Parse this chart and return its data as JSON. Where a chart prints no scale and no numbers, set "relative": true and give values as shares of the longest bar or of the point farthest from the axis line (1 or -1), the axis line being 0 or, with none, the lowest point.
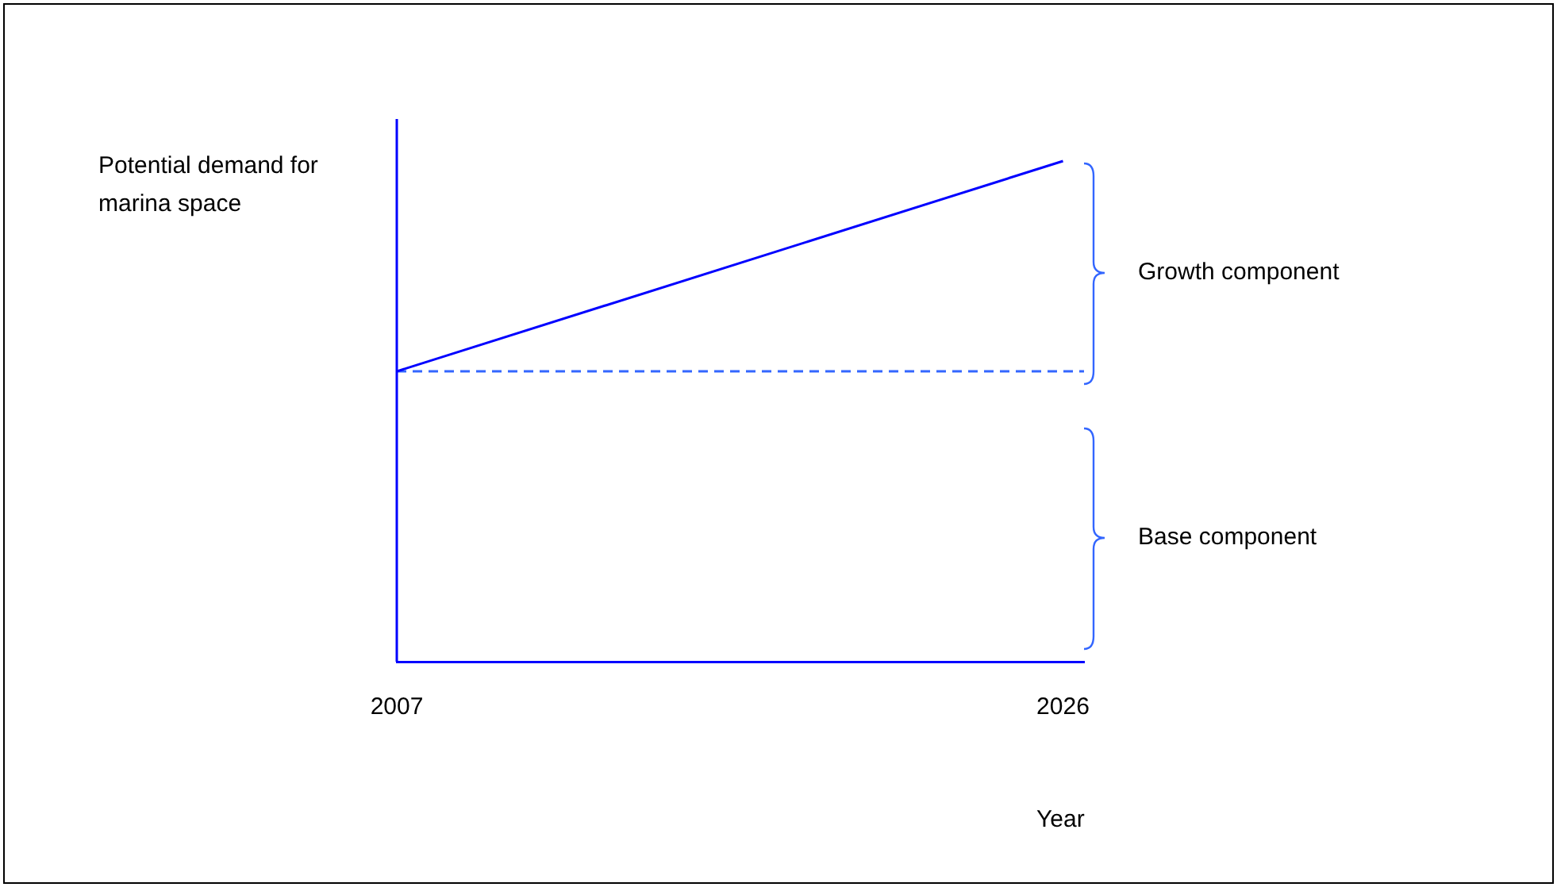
{
  "chart_data": {
    "type": "line",
    "relative": true,
    "ylabel": "Potential demand for marina space",
    "xlabel": "Year",
    "xlim": [
      2007,
      2026.6
    ],
    "xticks": [
      2007,
      2026
    ],
    "series": [
      {
        "color": "#0000ff",
        "x": [
          2007,
          2026
        ],
        "values": [
          0.58,
          1
        ],
        "line_style": "solid"
      },
      {
        "color": "#3366ff",
        "x": [
          2007,
          2026.6
        ],
        "values": [
          0.58,
          0.58
        ],
        "line_style": "dashed"
      }
    ],
    "annotations": [
      "Growth component",
      "Base component"
    ],
    "grid": false,
    "legend": false,
    "marker": "none"
  }
}
